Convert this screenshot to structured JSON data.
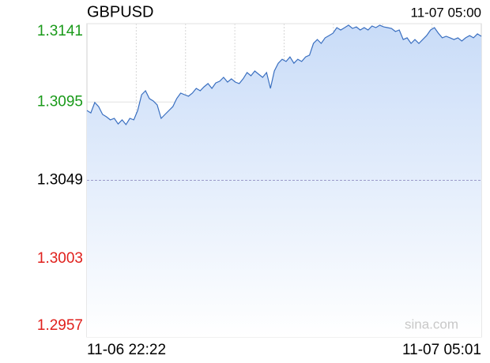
{
  "chart_data": {
    "type": "line",
    "title": "GBPUSD",
    "updated": "11-07 05:00",
    "watermark": "sina.com",
    "categories": [
      "11-06 22:22",
      null,
      null,
      null,
      null,
      null,
      null,
      null,
      null,
      null,
      null,
      null,
      null,
      null,
      null,
      null,
      null,
      null,
      null,
      null,
      null,
      null,
      null,
      null,
      null,
      null,
      null,
      null,
      null,
      null,
      null,
      null,
      null,
      null,
      null,
      null,
      null,
      null,
      null,
      null,
      null,
      null,
      null,
      null,
      null,
      null,
      null,
      null,
      null,
      null,
      null,
      null,
      null,
      null,
      null,
      null,
      null,
      null,
      null,
      null,
      null,
      null,
      null,
      null,
      null,
      null,
      null,
      null,
      null,
      null,
      null,
      null,
      null,
      null,
      null,
      null,
      null,
      null,
      null,
      null,
      null,
      null,
      null,
      null,
      null,
      null,
      null,
      null,
      null,
      null,
      null,
      null,
      null,
      null,
      null,
      null,
      null,
      null,
      null,
      null,
      null,
      "11-07 05:01"
    ],
    "values": [
      1.309,
      1.30886,
      1.30947,
      1.30923,
      1.30877,
      1.30863,
      1.30845,
      1.30854,
      1.30821,
      1.30845,
      1.30817,
      1.30854,
      1.30845,
      1.309,
      1.30993,
      1.31016,
      1.3097,
      1.30956,
      1.30933,
      1.30854,
      1.30877,
      1.309,
      1.30923,
      1.3097,
      1.31002,
      1.30993,
      1.30984,
      1.31002,
      1.3103,
      1.31016,
      1.31039,
      1.31058,
      1.3103,
      1.31062,
      1.31072,
      1.31095,
      1.31067,
      1.31086,
      1.31067,
      1.31058,
      1.31086,
      1.31123,
      1.31104,
      1.31132,
      1.31113,
      1.31095,
      1.31123,
      1.3103,
      1.31132,
      1.31178,
      1.31201,
      1.31188,
      1.31215,
      1.31178,
      1.31201,
      1.31188,
      1.31215,
      1.31225,
      1.31294,
      1.31317,
      1.31294,
      1.31327,
      1.3134,
      1.31354,
      1.31387,
      1.31373,
      1.31387,
      1.31401,
      1.31382,
      1.31391,
      1.31373,
      1.31387,
      1.31373,
      1.31396,
      1.31387,
      1.31401,
      1.31391,
      1.31387,
      1.31382,
      1.31364,
      1.31373,
      1.31317,
      1.31327,
      1.31294,
      1.31317,
      1.31294,
      1.31317,
      1.3134,
      1.31373,
      1.31387,
      1.31354,
      1.31327,
      1.31336,
      1.31327,
      1.31317,
      1.31327,
      1.31308,
      1.31327,
      1.3134,
      1.31327,
      1.3135,
      1.31336
    ],
    "color": "#3a6fc0",
    "fill_color": "#c9dcf8",
    "ylim": [
      1.2957,
      1.3141
    ],
    "yticks": [
      1.2957,
      1.3003,
      1.3049,
      1.3095,
      1.3141
    ],
    "reference_line": 1.3049,
    "up_color": "#1a9a1a",
    "down_color": "#e0201c",
    "flat_color": "#000000",
    "grid": true,
    "x_grid_divisions": 8
  }
}
